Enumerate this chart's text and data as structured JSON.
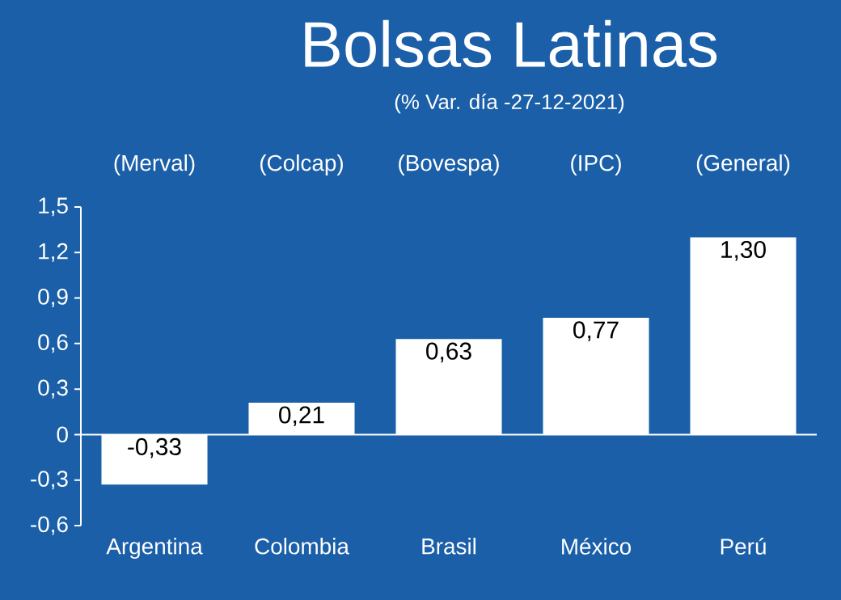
{
  "chart_data": {
    "type": "bar",
    "title": "Bolsas Latinas",
    "subtitle": "(% Var. día -27-12-2021)",
    "categories": [
      "Argentina",
      "Colombia",
      "Brasil",
      "México",
      "Perú"
    ],
    "values": [
      -0.33,
      0.21,
      0.63,
      0.77,
      1.3
    ],
    "value_labels": [
      "-0,33",
      "0,21",
      "0,63",
      "0,77",
      "1,30"
    ],
    "color": "#ffffff",
    "ylim": [
      -0.6,
      1.5
    ],
    "yticks": [
      {
        "value": -0.6,
        "label": "-0,6"
      },
      {
        "value": -0.3,
        "label": "-0,3"
      },
      {
        "value": 0,
        "label": "0"
      },
      {
        "value": 0.3,
        "label": "0,3"
      },
      {
        "value": 0.6,
        "label": "0,6"
      },
      {
        "value": 0.9,
        "label": "0,9"
      },
      {
        "value": 1.2,
        "label": "1,2"
      },
      {
        "value": 1.5,
        "label": "1,5"
      }
    ],
    "annotations": [
      "(Merval)",
      "(Colcap)",
      "(Bovespa)",
      "(IPC)",
      "(General)"
    ]
  }
}
